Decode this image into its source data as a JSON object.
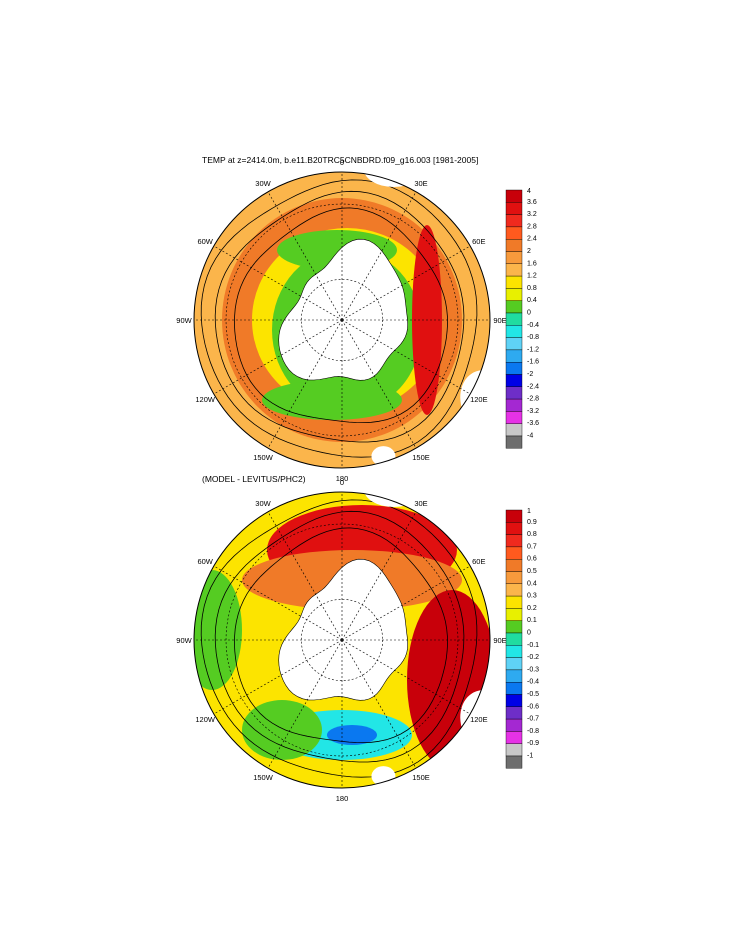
{
  "chart_data": [
    {
      "type": "polar-stereographic contour map",
      "title": "TEMP at z=2414.0m, b.e11.B20TRC5CNBDRD.f09_g16.003 [1981-2005]",
      "longitude_labels": [
        "0",
        "30E",
        "60E",
        "90E",
        "120E",
        "150E",
        "180",
        "150W",
        "120W",
        "90W",
        "60W",
        "30W"
      ],
      "colorbar": {
        "levels": [
          "4",
          "3.6",
          "3.2",
          "2.8",
          "2.4",
          "2",
          "1.6",
          "1.2",
          "0.8",
          "0.4",
          "0",
          "-0.4",
          "-0.8",
          "-1.2",
          "-1.6",
          "-2",
          "-2.4",
          "-2.8",
          "-3.2",
          "-3.6",
          "-4"
        ],
        "colors": [
          "#c8000a",
          "#e01010",
          "#f02a1e",
          "#ff5a1e",
          "#f07a28",
          "#f79a3c",
          "#fbb54b",
          "#fce400",
          "#e8f000",
          "#55cc22",
          "#20dca0",
          "#22e6e6",
          "#5fd2f6",
          "#2eaaf0",
          "#0a78f0",
          "#0000e6",
          "#6e2ec8",
          "#a428d2",
          "#e632e6",
          "#c8c8c8",
          "#6e6e6e"
        ]
      }
    },
    {
      "type": "polar-stereographic contour map",
      "title": "(MODEL - LEVITUS/PHC2)",
      "longitude_labels": [
        "0",
        "30E",
        "60E",
        "90E",
        "120E",
        "150E",
        "180",
        "150W",
        "120W",
        "90W",
        "60W",
        "30W"
      ],
      "colorbar": {
        "levels": [
          "1",
          "0.9",
          "0.8",
          "0.7",
          "0.6",
          "0.5",
          "0.4",
          "0.3",
          "0.2",
          "0.1",
          "0",
          "-0.1",
          "-0.2",
          "-0.3",
          "-0.4",
          "-0.5",
          "-0.6",
          "-0.7",
          "-0.8",
          "-0.9",
          "-1"
        ],
        "colors": [
          "#c8000a",
          "#e01010",
          "#f02a1e",
          "#ff5a1e",
          "#f07a28",
          "#f79a3c",
          "#fbb54b",
          "#fce400",
          "#e8f000",
          "#55cc22",
          "#20dca0",
          "#22e6e6",
          "#5fd2f6",
          "#2eaaf0",
          "#0a78f0",
          "#0000e6",
          "#6e2ec8",
          "#a428d2",
          "#e632e6",
          "#c8c8c8",
          "#6e6e6e"
        ]
      }
    }
  ]
}
